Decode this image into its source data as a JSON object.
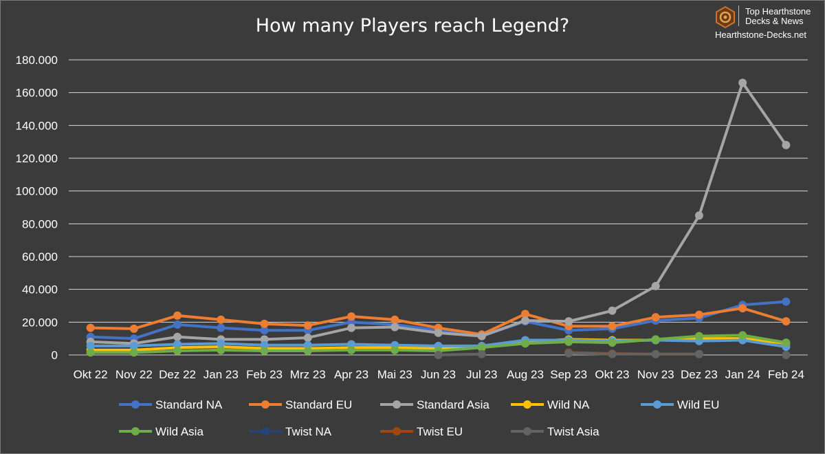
{
  "logo": {
    "line1": "Top Hearthstone",
    "line2": "Decks & News",
    "url": "Hearthstone-Decks.net",
    "icon": "hexagon-spiral-logo-icon"
  },
  "chart_data": {
    "type": "line",
    "title": "How many Players reach Legend?",
    "xlabel": "",
    "ylabel": "",
    "ylim": [
      0,
      180000
    ],
    "yticks": [
      "0",
      "20.000",
      "40.000",
      "60.000",
      "80.000",
      "100.000",
      "120.000",
      "140.000",
      "160.000",
      "180.000"
    ],
    "grid": true,
    "legend_position": "bottom",
    "categories": [
      "Okt 22",
      "Nov 22",
      "Dez 22",
      "Jan 23",
      "Feb 23",
      "Mrz 23",
      "Apr 23",
      "Mai 23",
      "Jun 23",
      "Jul 23",
      "Aug 23",
      "Sep 23",
      "Okt 23",
      "Nov 23",
      "Dez 23",
      "Jan 24",
      "Feb 24"
    ],
    "series": [
      {
        "name": "Standard NA",
        "color": "#4472c4",
        "values": [
          11000,
          10000,
          18500,
          16500,
          15000,
          15000,
          20000,
          18500,
          15000,
          11500,
          20500,
          15000,
          16000,
          21000,
          22500,
          30500,
          32500
        ]
      },
      {
        "name": "Standard EU",
        "color": "#ed7d31",
        "values": [
          16500,
          16000,
          24000,
          21500,
          19000,
          18000,
          23500,
          21500,
          16500,
          12500,
          25000,
          17500,
          17500,
          23000,
          24500,
          28500,
          20500
        ]
      },
      {
        "name": "Standard Asia",
        "color": "#a5a5a5",
        "values": [
          8000,
          7000,
          11000,
          9500,
          9500,
          10500,
          16500,
          17000,
          13500,
          11500,
          21000,
          20500,
          27000,
          42000,
          85000,
          166000,
          128000
        ]
      },
      {
        "name": "Wild NA",
        "color": "#ffc000",
        "values": [
          3000,
          3000,
          4500,
          5000,
          4000,
          4000,
          4500,
          4500,
          4000,
          4500,
          8000,
          9500,
          9000,
          9000,
          10000,
          10000,
          7000
        ]
      },
      {
        "name": "Wild EU",
        "color": "#5b9bd5",
        "values": [
          5500,
          5500,
          6500,
          7000,
          6000,
          6000,
          6500,
          6000,
          5500,
          5500,
          9000,
          9000,
          8500,
          9000,
          8500,
          9000,
          5000
        ]
      },
      {
        "name": "Wild Asia",
        "color": "#70ad47",
        "values": [
          1500,
          1500,
          2500,
          3000,
          2500,
          2500,
          3000,
          3000,
          2500,
          4500,
          7000,
          8000,
          7500,
          9500,
          11500,
          12000,
          7500
        ]
      },
      {
        "name": "Twist NA",
        "color": "#264478",
        "values": [
          null,
          null,
          null,
          null,
          null,
          null,
          null,
          null,
          null,
          null,
          null,
          null,
          null,
          null,
          null,
          null,
          null
        ]
      },
      {
        "name": "Twist EU",
        "color": "#9e480e",
        "values": [
          null,
          null,
          null,
          null,
          null,
          null,
          null,
          null,
          null,
          null,
          null,
          1500,
          800,
          500,
          500,
          null,
          null
        ]
      },
      {
        "name": "Twist Asia",
        "color": "#636363",
        "values": [
          null,
          null,
          null,
          null,
          null,
          null,
          null,
          null,
          0,
          500,
          null,
          1000,
          500,
          500,
          500,
          null,
          0
        ]
      }
    ]
  }
}
